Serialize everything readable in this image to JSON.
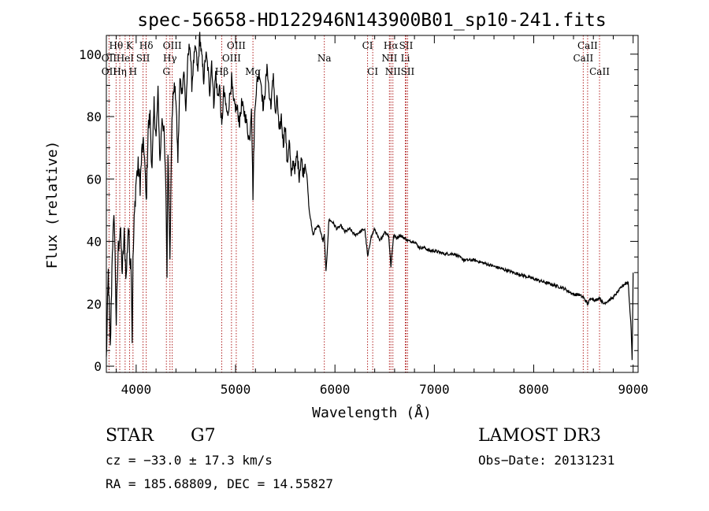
{
  "chart_data": {
    "type": "line",
    "title": "spec-56658-HD122946N143900B01_sp10-241.fits",
    "xlabel": "Wavelength (Å)",
    "ylabel": "Flux (relative)",
    "xlim": [
      3700,
      9050
    ],
    "ylim": [
      -2,
      106
    ],
    "xticks": [
      4000,
      5000,
      6000,
      7000,
      8000,
      9000
    ],
    "yticks": [
      0,
      20,
      40,
      60,
      80,
      100
    ],
    "spectrum": {
      "x": [
        3700,
        3720,
        3740,
        3760,
        3780,
        3800,
        3820,
        3840,
        3860,
        3880,
        3900,
        3920,
        3940,
        3950,
        3960,
        3968,
        3980,
        4000,
        4020,
        4040,
        4060,
        4080,
        4101,
        4120,
        4140,
        4160,
        4180,
        4200,
        4220,
        4240,
        4260,
        4280,
        4300,
        4310,
        4320,
        4340,
        4360,
        4380,
        4400,
        4420,
        4440,
        4460,
        4480,
        4500,
        4520,
        4540,
        4560,
        4580,
        4600,
        4620,
        4640,
        4660,
        4680,
        4700,
        4720,
        4740,
        4760,
        4780,
        4800,
        4820,
        4840,
        4861,
        4880,
        4900,
        4920,
        4940,
        4960,
        4980,
        5000,
        5020,
        5040,
        5060,
        5080,
        5100,
        5120,
        5140,
        5160,
        5175,
        5190,
        5200,
        5220,
        5240,
        5260,
        5280,
        5300,
        5320,
        5340,
        5360,
        5380,
        5400,
        5420,
        5440,
        5460,
        5480,
        5500,
        5520,
        5540,
        5560,
        5580,
        5600,
        5620,
        5640,
        5660,
        5680,
        5700,
        5720,
        5740,
        5760,
        5780,
        5800,
        5840,
        5880,
        5893,
        5910,
        5940,
        5980,
        6020,
        6060,
        6100,
        6150,
        6200,
        6250,
        6300,
        6330,
        6360,
        6400,
        6450,
        6500,
        6540,
        6563,
        6590,
        6620,
        6650,
        6700,
        6750,
        6800,
        6850,
        6900,
        6950,
        7000,
        7100,
        7200,
        7300,
        7400,
        7500,
        7600,
        7700,
        7800,
        7900,
        8000,
        8100,
        8200,
        8300,
        8400,
        8450,
        8500,
        8542,
        8580,
        8620,
        8662,
        8700,
        8750,
        8800,
        8850,
        8900,
        8950,
        8980,
        8990,
        9000
      ],
      "flux": [
        2,
        30,
        5,
        38,
        48,
        14,
        38,
        44,
        30,
        42,
        28,
        45,
        34,
        33,
        8,
        33,
        46,
        60,
        64,
        58,
        70,
        70,
        52,
        76,
        80,
        62,
        84,
        73,
        88,
        65,
        80,
        75,
        55,
        30,
        70,
        36,
        80,
        90,
        86,
        66,
        92,
        88,
        95,
        82,
        98,
        104,
        90,
        98,
        102,
        94,
        106,
        99,
        92,
        100,
        96,
        88,
        98,
        84,
        94,
        86,
        90,
        76,
        88,
        84,
        80,
        86,
        92,
        84,
        83,
        82,
        78,
        84,
        82,
        80,
        76,
        72,
        84,
        55,
        78,
        86,
        92,
        94,
        90,
        82,
        90,
        96,
        86,
        84,
        94,
        80,
        86,
        74,
        80,
        71,
        78,
        64,
        73,
        60,
        66,
        63,
        68,
        61,
        67,
        62,
        65,
        60,
        50,
        46,
        42,
        44,
        45,
        40,
        42,
        30,
        47,
        46,
        44,
        45,
        43,
        44,
        42,
        43,
        44,
        35,
        41,
        44,
        40,
        43,
        42,
        32,
        42,
        41,
        42,
        41,
        40,
        40,
        38,
        38,
        37,
        37,
        36,
        36,
        34,
        34,
        33,
        32,
        31,
        30,
        29,
        28,
        27,
        26,
        25,
        23,
        23,
        22,
        20,
        22,
        21,
        22,
        20,
        21,
        22,
        24,
        26,
        27,
        12,
        2,
        30
      ]
    },
    "lines_row1": [
      {
        "label": "Hθ",
        "wl": 3798
      },
      {
        "label": "K",
        "wl": 3934
      },
      {
        "label": "Hδ",
        "wl": 4101
      },
      {
        "label": "OIII",
        "wl": 4363
      },
      {
        "label": "OIII",
        "wl": 5007
      },
      {
        "label": "Na",
        "wl": 5893,
        "row": 2
      },
      {
        "label": "CI",
        "wl": 6328
      },
      {
        "label": "Hα",
        "wl": 6563
      },
      {
        "label": "SII",
        "wl": 6716
      },
      {
        "label": "CaII",
        "wl": 8542
      }
    ],
    "lines_row2": [
      {
        "label": "OII",
        "wl": 3727
      },
      {
        "label": "HeI",
        "wl": 3889
      },
      {
        "label": "SII",
        "wl": 4069
      },
      {
        "label": "Hγ",
        "wl": 4340
      },
      {
        "label": "OIII",
        "wl": 4959
      },
      {
        "label": "NII",
        "wl": 6548
      },
      {
        "label": "Li",
        "wl": 6708
      },
      {
        "label": "CaII",
        "wl": 8498
      }
    ],
    "lines_row3": [
      {
        "label": "OII",
        "wl": 3727
      },
      {
        "label": "Hη",
        "wl": 3835
      },
      {
        "label": "H",
        "wl": 3968
      },
      {
        "label": "G",
        "wl": 4304
      },
      {
        "label": "Hβ",
        "wl": 4861
      },
      {
        "label": "Mg",
        "wl": 5175
      },
      {
        "label": "CI",
        "wl": 6380
      },
      {
        "label": "NII",
        "wl": 6583
      },
      {
        "label": "SII",
        "wl": 6731
      },
      {
        "label": "CaII",
        "wl": 8662
      }
    ]
  },
  "info": {
    "obj_class": "STAR",
    "subclass": "G7",
    "survey": "LAMOST DR3",
    "cz": "cz = −33.0 ± 17.3 km/s",
    "obs_date": "Obs−Date: 20131231",
    "radec": "RA = 185.68809, DEC =  14.55827"
  },
  "colors": {
    "spectrum": "#000000",
    "marker": "#b22222",
    "axis": "#000000"
  }
}
